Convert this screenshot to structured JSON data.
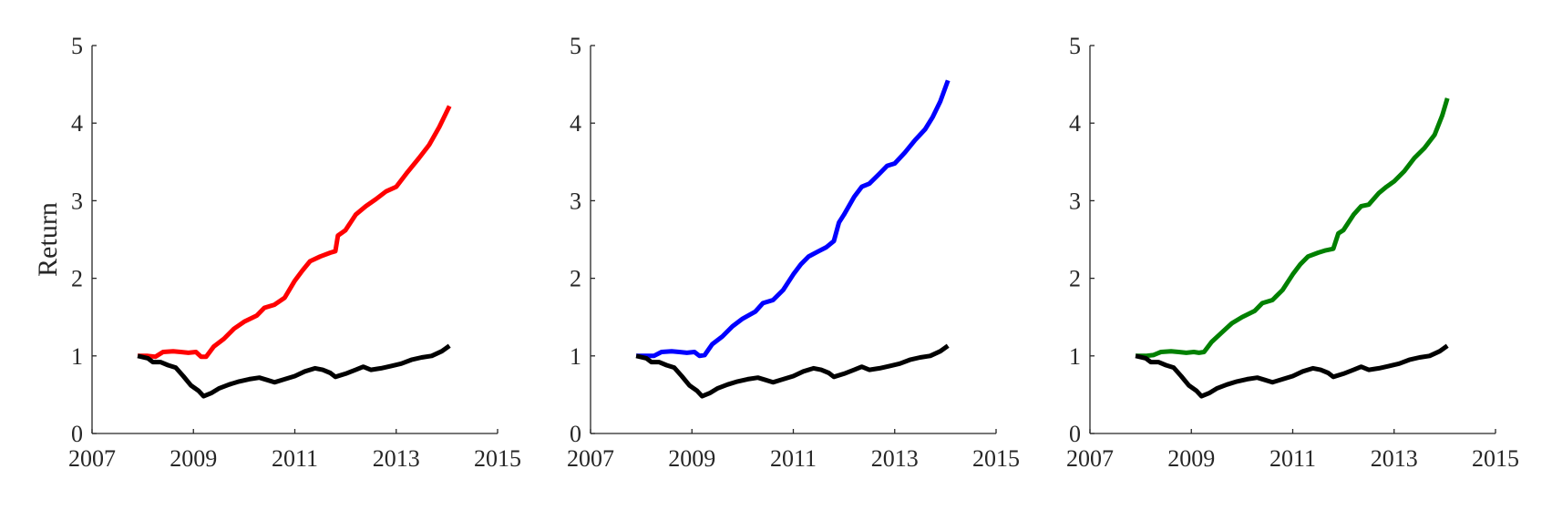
{
  "chart_data": [
    {
      "type": "line",
      "ylabel": "Return",
      "xlim": [
        2007,
        2015
      ],
      "ylim": [
        0,
        5
      ],
      "xticks": [
        "2007",
        "2009",
        "2011",
        "2013",
        "2015"
      ],
      "yticks": [
        "0",
        "1",
        "2",
        "3",
        "4",
        "5"
      ],
      "grid": false,
      "series": [
        {
          "color": "#ff0000",
          "points": [
            [
              2007.9,
              1.0
            ],
            [
              2008.1,
              1.0
            ],
            [
              2008.25,
              0.99
            ],
            [
              2008.4,
              1.05
            ],
            [
              2008.6,
              1.06
            ],
            [
              2008.75,
              1.05
            ],
            [
              2008.9,
              1.04
            ],
            [
              2009.05,
              1.05
            ],
            [
              2009.15,
              0.99
            ],
            [
              2009.25,
              0.99
            ],
            [
              2009.4,
              1.12
            ],
            [
              2009.6,
              1.22
            ],
            [
              2009.8,
              1.35
            ],
            [
              2010.0,
              1.44
            ],
            [
              2010.25,
              1.52
            ],
            [
              2010.4,
              1.62
            ],
            [
              2010.6,
              1.66
            ],
            [
              2010.8,
              1.75
            ],
            [
              2011.0,
              1.97
            ],
            [
              2011.15,
              2.1
            ],
            [
              2011.3,
              2.22
            ],
            [
              2011.5,
              2.28
            ],
            [
              2011.7,
              2.33
            ],
            [
              2011.8,
              2.35
            ],
            [
              2011.85,
              2.55
            ],
            [
              2012.0,
              2.62
            ],
            [
              2012.2,
              2.82
            ],
            [
              2012.4,
              2.93
            ],
            [
              2012.6,
              3.02
            ],
            [
              2012.8,
              3.12
            ],
            [
              2013.0,
              3.18
            ],
            [
              2013.2,
              3.35
            ],
            [
              2013.45,
              3.55
            ],
            [
              2013.65,
              3.72
            ],
            [
              2013.85,
              3.95
            ],
            [
              2014.05,
              4.22
            ]
          ]
        },
        {
          "color": "#000000",
          "points": [
            [
              2007.9,
              1.0
            ],
            [
              2008.1,
              0.97
            ],
            [
              2008.2,
              0.92
            ],
            [
              2008.35,
              0.92
            ],
            [
              2008.5,
              0.88
            ],
            [
              2008.65,
              0.85
            ],
            [
              2008.8,
              0.74
            ],
            [
              2008.95,
              0.62
            ],
            [
              2009.1,
              0.55
            ],
            [
              2009.2,
              0.48
            ],
            [
              2009.35,
              0.52
            ],
            [
              2009.5,
              0.58
            ],
            [
              2009.7,
              0.63
            ],
            [
              2009.9,
              0.67
            ],
            [
              2010.1,
              0.7
            ],
            [
              2010.3,
              0.72
            ],
            [
              2010.45,
              0.69
            ],
            [
              2010.6,
              0.66
            ],
            [
              2010.8,
              0.7
            ],
            [
              2011.0,
              0.74
            ],
            [
              2011.2,
              0.8
            ],
            [
              2011.4,
              0.84
            ],
            [
              2011.55,
              0.82
            ],
            [
              2011.7,
              0.78
            ],
            [
              2011.8,
              0.73
            ],
            [
              2012.0,
              0.77
            ],
            [
              2012.2,
              0.82
            ],
            [
              2012.35,
              0.86
            ],
            [
              2012.5,
              0.82
            ],
            [
              2012.7,
              0.84
            ],
            [
              2012.9,
              0.87
            ],
            [
              2013.1,
              0.9
            ],
            [
              2013.3,
              0.95
            ],
            [
              2013.5,
              0.98
            ],
            [
              2013.7,
              1.0
            ],
            [
              2013.9,
              1.06
            ],
            [
              2014.05,
              1.13
            ]
          ]
        }
      ]
    },
    {
      "type": "line",
      "xlim": [
        2007,
        2015
      ],
      "ylim": [
        0,
        5
      ],
      "xticks": [
        "2007",
        "2009",
        "2011",
        "2013",
        "2015"
      ],
      "yticks": [
        "0",
        "1",
        "2",
        "3",
        "4",
        "5"
      ],
      "grid": false,
      "series": [
        {
          "color": "#0000ff",
          "points": [
            [
              2007.9,
              1.0
            ],
            [
              2008.1,
              1.0
            ],
            [
              2008.25,
              1.0
            ],
            [
              2008.4,
              1.05
            ],
            [
              2008.6,
              1.06
            ],
            [
              2008.75,
              1.05
            ],
            [
              2008.9,
              1.04
            ],
            [
              2009.05,
              1.05
            ],
            [
              2009.15,
              1.0
            ],
            [
              2009.25,
              1.01
            ],
            [
              2009.4,
              1.15
            ],
            [
              2009.6,
              1.25
            ],
            [
              2009.8,
              1.38
            ],
            [
              2010.0,
              1.48
            ],
            [
              2010.25,
              1.57
            ],
            [
              2010.4,
              1.68
            ],
            [
              2010.6,
              1.72
            ],
            [
              2010.8,
              1.85
            ],
            [
              2011.0,
              2.05
            ],
            [
              2011.15,
              2.18
            ],
            [
              2011.3,
              2.28
            ],
            [
              2011.5,
              2.35
            ],
            [
              2011.65,
              2.4
            ],
            [
              2011.8,
              2.48
            ],
            [
              2011.9,
              2.72
            ],
            [
              2012.0,
              2.82
            ],
            [
              2012.2,
              3.05
            ],
            [
              2012.35,
              3.18
            ],
            [
              2012.5,
              3.22
            ],
            [
              2012.7,
              3.35
            ],
            [
              2012.85,
              3.45
            ],
            [
              2013.0,
              3.48
            ],
            [
              2013.2,
              3.62
            ],
            [
              2013.4,
              3.78
            ],
            [
              2013.6,
              3.92
            ],
            [
              2013.75,
              4.08
            ],
            [
              2013.9,
              4.28
            ],
            [
              2014.05,
              4.55
            ]
          ]
        },
        {
          "color": "#000000",
          "points": [
            [
              2007.9,
              1.0
            ],
            [
              2008.1,
              0.97
            ],
            [
              2008.2,
              0.92
            ],
            [
              2008.35,
              0.92
            ],
            [
              2008.5,
              0.88
            ],
            [
              2008.65,
              0.85
            ],
            [
              2008.8,
              0.74
            ],
            [
              2008.95,
              0.62
            ],
            [
              2009.1,
              0.55
            ],
            [
              2009.2,
              0.48
            ],
            [
              2009.35,
              0.52
            ],
            [
              2009.5,
              0.58
            ],
            [
              2009.7,
              0.63
            ],
            [
              2009.9,
              0.67
            ],
            [
              2010.1,
              0.7
            ],
            [
              2010.3,
              0.72
            ],
            [
              2010.45,
              0.69
            ],
            [
              2010.6,
              0.66
            ],
            [
              2010.8,
              0.7
            ],
            [
              2011.0,
              0.74
            ],
            [
              2011.2,
              0.8
            ],
            [
              2011.4,
              0.84
            ],
            [
              2011.55,
              0.82
            ],
            [
              2011.7,
              0.78
            ],
            [
              2011.8,
              0.73
            ],
            [
              2012.0,
              0.77
            ],
            [
              2012.2,
              0.82
            ],
            [
              2012.35,
              0.86
            ],
            [
              2012.5,
              0.82
            ],
            [
              2012.7,
              0.84
            ],
            [
              2012.9,
              0.87
            ],
            [
              2013.1,
              0.9
            ],
            [
              2013.3,
              0.95
            ],
            [
              2013.5,
              0.98
            ],
            [
              2013.7,
              1.0
            ],
            [
              2013.9,
              1.06
            ],
            [
              2014.05,
              1.13
            ]
          ]
        }
      ]
    },
    {
      "type": "line",
      "xlim": [
        2007,
        2015
      ],
      "ylim": [
        0,
        5
      ],
      "xticks": [
        "2007",
        "2009",
        "2011",
        "2013",
        "2015"
      ],
      "yticks": [
        "0",
        "1",
        "2",
        "3",
        "4",
        "5"
      ],
      "grid": false,
      "series": [
        {
          "color": "#008000",
          "points": [
            [
              2007.9,
              1.0
            ],
            [
              2008.1,
              1.0
            ],
            [
              2008.25,
              1.01
            ],
            [
              2008.4,
              1.05
            ],
            [
              2008.6,
              1.06
            ],
            [
              2008.75,
              1.05
            ],
            [
              2008.9,
              1.04
            ],
            [
              2009.05,
              1.05
            ],
            [
              2009.15,
              1.04
            ],
            [
              2009.25,
              1.05
            ],
            [
              2009.4,
              1.18
            ],
            [
              2009.6,
              1.3
            ],
            [
              2009.8,
              1.42
            ],
            [
              2010.0,
              1.5
            ],
            [
              2010.25,
              1.58
            ],
            [
              2010.4,
              1.68
            ],
            [
              2010.6,
              1.72
            ],
            [
              2010.8,
              1.85
            ],
            [
              2011.0,
              2.05
            ],
            [
              2011.15,
              2.18
            ],
            [
              2011.3,
              2.28
            ],
            [
              2011.5,
              2.33
            ],
            [
              2011.65,
              2.36
            ],
            [
              2011.8,
              2.38
            ],
            [
              2011.9,
              2.58
            ],
            [
              2012.0,
              2.62
            ],
            [
              2012.2,
              2.82
            ],
            [
              2012.35,
              2.93
            ],
            [
              2012.5,
              2.95
            ],
            [
              2012.7,
              3.1
            ],
            [
              2012.85,
              3.18
            ],
            [
              2013.0,
              3.25
            ],
            [
              2013.2,
              3.38
            ],
            [
              2013.4,
              3.55
            ],
            [
              2013.6,
              3.68
            ],
            [
              2013.8,
              3.85
            ],
            [
              2013.95,
              4.1
            ],
            [
              2014.05,
              4.32
            ]
          ]
        },
        {
          "color": "#000000",
          "points": [
            [
              2007.9,
              1.0
            ],
            [
              2008.1,
              0.97
            ],
            [
              2008.2,
              0.92
            ],
            [
              2008.35,
              0.92
            ],
            [
              2008.5,
              0.88
            ],
            [
              2008.65,
              0.85
            ],
            [
              2008.8,
              0.74
            ],
            [
              2008.95,
              0.62
            ],
            [
              2009.1,
              0.55
            ],
            [
              2009.2,
              0.48
            ],
            [
              2009.35,
              0.52
            ],
            [
              2009.5,
              0.58
            ],
            [
              2009.7,
              0.63
            ],
            [
              2009.9,
              0.67
            ],
            [
              2010.1,
              0.7
            ],
            [
              2010.3,
              0.72
            ],
            [
              2010.45,
              0.69
            ],
            [
              2010.6,
              0.66
            ],
            [
              2010.8,
              0.7
            ],
            [
              2011.0,
              0.74
            ],
            [
              2011.2,
              0.8
            ],
            [
              2011.4,
              0.84
            ],
            [
              2011.55,
              0.82
            ],
            [
              2011.7,
              0.78
            ],
            [
              2011.8,
              0.73
            ],
            [
              2012.0,
              0.77
            ],
            [
              2012.2,
              0.82
            ],
            [
              2012.35,
              0.86
            ],
            [
              2012.5,
              0.82
            ],
            [
              2012.7,
              0.84
            ],
            [
              2012.9,
              0.87
            ],
            [
              2013.1,
              0.9
            ],
            [
              2013.3,
              0.95
            ],
            [
              2013.5,
              0.98
            ],
            [
              2013.7,
              1.0
            ],
            [
              2013.9,
              1.06
            ],
            [
              2014.05,
              1.13
            ]
          ]
        }
      ]
    }
  ]
}
